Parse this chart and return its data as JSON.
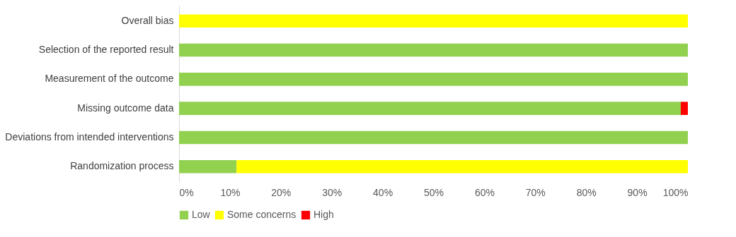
{
  "chart_data": {
    "type": "bar",
    "orientation": "horizontal",
    "stacked": true,
    "legend": "bottom",
    "grid": false,
    "categories": [
      "Overall bias",
      "Selection of the reported result",
      "Measurement of the outcome",
      "Missing outcome data",
      "Deviations from intended interventions",
      "Randomization process"
    ],
    "series": [
      {
        "name": "Low",
        "color": "#92d050",
        "values": [
          0,
          100,
          100,
          98.6,
          100,
          11.3
        ]
      },
      {
        "name": "Some concerns",
        "color": "#ffff00",
        "values": [
          100,
          0,
          0,
          0,
          0,
          88.7
        ]
      },
      {
        "name": "High",
        "color": "#ff0000",
        "values": [
          0,
          0,
          0,
          1.4,
          0,
          0
        ]
      }
    ],
    "xlim": [
      0,
      100
    ],
    "xticks": [
      {
        "value": 0,
        "label": "0%"
      },
      {
        "value": 10,
        "label": "10%"
      },
      {
        "value": 20,
        "label": "20%"
      },
      {
        "value": 30,
        "label": "30%"
      },
      {
        "value": 40,
        "label": "40%"
      },
      {
        "value": 50,
        "label": "50%"
      },
      {
        "value": 60,
        "label": "60%"
      },
      {
        "value": 70,
        "label": "70%"
      },
      {
        "value": 80,
        "label": "80%"
      },
      {
        "value": 90,
        "label": "90%"
      },
      {
        "value": 100,
        "label": "100%"
      }
    ]
  }
}
